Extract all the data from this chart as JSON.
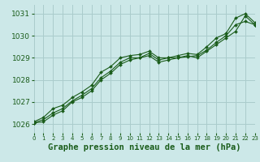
{
  "title": "Graphe pression niveau de la mer (hPa)",
  "bg_color": "#cce8e8",
  "grid_color": "#aacccc",
  "line_color": "#1a5c1a",
  "series1": [
    1026.1,
    1026.3,
    1026.7,
    1026.85,
    1027.2,
    1027.45,
    1027.75,
    1028.35,
    1028.6,
    1029.0,
    1029.1,
    1029.15,
    1029.3,
    1029.0,
    1029.0,
    1029.1,
    1029.2,
    1029.15,
    1029.5,
    1029.9,
    1030.1,
    1030.8,
    1031.0,
    1030.6
  ],
  "series2": [
    1026.05,
    1026.1,
    1026.4,
    1026.6,
    1027.0,
    1027.2,
    1027.5,
    1028.0,
    1028.3,
    1028.7,
    1028.9,
    1029.0,
    1029.1,
    1028.8,
    1028.9,
    1029.0,
    1029.05,
    1029.1,
    1029.35,
    1029.7,
    1030.0,
    1030.5,
    1030.65,
    1030.5
  ],
  "series3": [
    1026.05,
    1026.2,
    1026.5,
    1026.7,
    1027.05,
    1027.3,
    1027.6,
    1028.1,
    1028.4,
    1028.8,
    1029.0,
    1029.0,
    1029.2,
    1028.9,
    1029.0,
    1029.0,
    1029.1,
    1029.0,
    1029.3,
    1029.6,
    1029.9,
    1030.2,
    1030.9,
    1030.5
  ],
  "xlim": [
    0,
    23
  ],
  "ylim": [
    1025.6,
    1031.4
  ],
  "yticks": [
    1026,
    1027,
    1028,
    1029,
    1030,
    1031
  ],
  "xticks": [
    0,
    1,
    2,
    3,
    4,
    5,
    6,
    7,
    8,
    9,
    10,
    11,
    12,
    13,
    14,
    15,
    16,
    17,
    18,
    19,
    20,
    21,
    22,
    23
  ],
  "xlabel_color": "#1a5c1a",
  "tick_color": "#1a5c1a",
  "ylabel_fontsize": 7,
  "xlabel_fontsize": 7,
  "title_fontsize": 7.5
}
